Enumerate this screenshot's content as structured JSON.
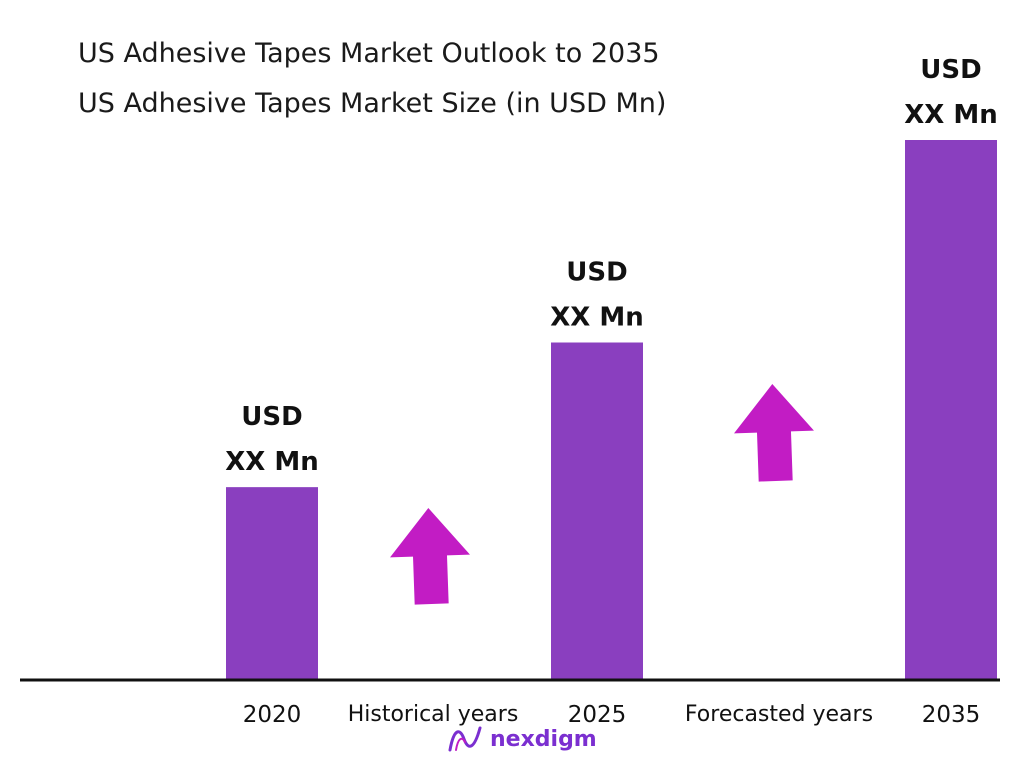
{
  "colors": {
    "bar": "#8a3fbf",
    "arrow": "#c21cc4",
    "axis": "#111111",
    "brand": "#7b2fd0"
  },
  "chart_data": {
    "type": "bar",
    "title": "US Adhesive Tapes Market Outlook to 2035",
    "subtitle": "US Adhesive Tapes Market Size (in USD Mn)",
    "categories": [
      "2020",
      "2025",
      "2035"
    ],
    "values": [
      2,
      3.5,
      5.6
    ],
    "value_labels": [
      [
        "USD",
        "XX Mn"
      ],
      [
        "USD",
        "XX Mn"
      ],
      [
        "USD",
        "XX Mn"
      ]
    ],
    "period_labels": [
      "Historical years",
      "Forecasted years"
    ],
    "ylim": [
      0,
      5.6
    ],
    "grid": false
  },
  "brand": {
    "name": "nexdigm",
    "icon": "nexdigm-logo-icon"
  }
}
